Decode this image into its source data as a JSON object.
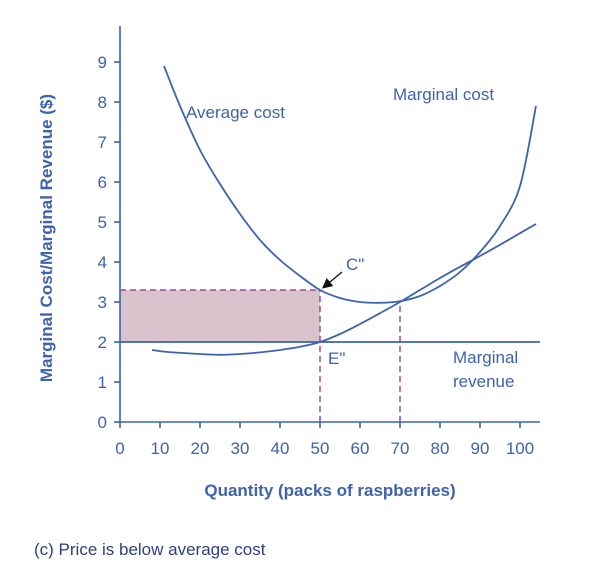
{
  "caption": "(c) Price is below average cost",
  "colors": {
    "axis": "#3d63ad",
    "curve": "#3d63ad",
    "dashed": "#9a4a9a",
    "shade": "#d9c3cc"
  },
  "chart_data": {
    "type": "line",
    "xlabel": "Quantity (packs of raspberries)",
    "ylabel": "Marginal Cost/Marginal Revenue ($)",
    "xlim": [
      0,
      105
    ],
    "ylim": [
      0,
      9.8
    ],
    "x_ticks": [
      "0",
      "10",
      "20",
      "30",
      "40",
      "50",
      "60",
      "70",
      "80",
      "90",
      "100"
    ],
    "y_ticks": [
      "0",
      "1",
      "2",
      "3",
      "4",
      "5",
      "6",
      "7",
      "8",
      "9"
    ],
    "grid": false,
    "series": [
      {
        "name": "Average cost",
        "x": [
          11,
          15,
          20,
          25,
          30,
          35,
          40,
          45,
          50,
          55,
          60,
          65,
          70,
          75,
          80,
          85,
          90,
          95,
          100,
          104
        ],
        "y": [
          8.9,
          7.9,
          6.8,
          5.95,
          5.2,
          4.55,
          4.05,
          3.65,
          3.3,
          3.1,
          3.0,
          2.98,
          3.02,
          3.15,
          3.4,
          3.75,
          4.25,
          4.9,
          5.9,
          7.9
        ]
      },
      {
        "name": "Marginal cost",
        "x": [
          8,
          12,
          20,
          25,
          30,
          35,
          40,
          45,
          50,
          55,
          60,
          65,
          70,
          75,
          80,
          85,
          90,
          95,
          100,
          104
        ],
        "y": [
          1.8,
          1.75,
          1.7,
          1.68,
          1.7,
          1.74,
          1.8,
          1.88,
          2.0,
          2.2,
          2.45,
          2.72,
          3.0,
          3.3,
          3.6,
          3.88,
          4.15,
          4.43,
          4.72,
          4.95
        ]
      },
      {
        "name": "Marginal revenue",
        "x": [
          0,
          105
        ],
        "y": [
          2,
          2
        ]
      }
    ],
    "labels": {
      "average_cost": "Average cost",
      "marginal_cost": "Marginal cost",
      "marginal_revenue_line1": "Marginal",
      "marginal_revenue_line2": "revenue",
      "point_c": "C\"",
      "point_e": "E\""
    },
    "shaded_region": {
      "x": [
        0,
        50
      ],
      "y": [
        2,
        3.3
      ]
    },
    "dashed_lines": [
      {
        "x": 50,
        "y_from": 0,
        "y_to": 3.3
      },
      {
        "x": 70,
        "y_from": 0,
        "y_to": 3.0
      },
      {
        "x_from": 0,
        "x_to": 50,
        "y": 3.3
      }
    ],
    "points": {
      "C": {
        "x": 50,
        "y": 3.3
      },
      "E": {
        "x": 50,
        "y": 2.0
      }
    }
  }
}
